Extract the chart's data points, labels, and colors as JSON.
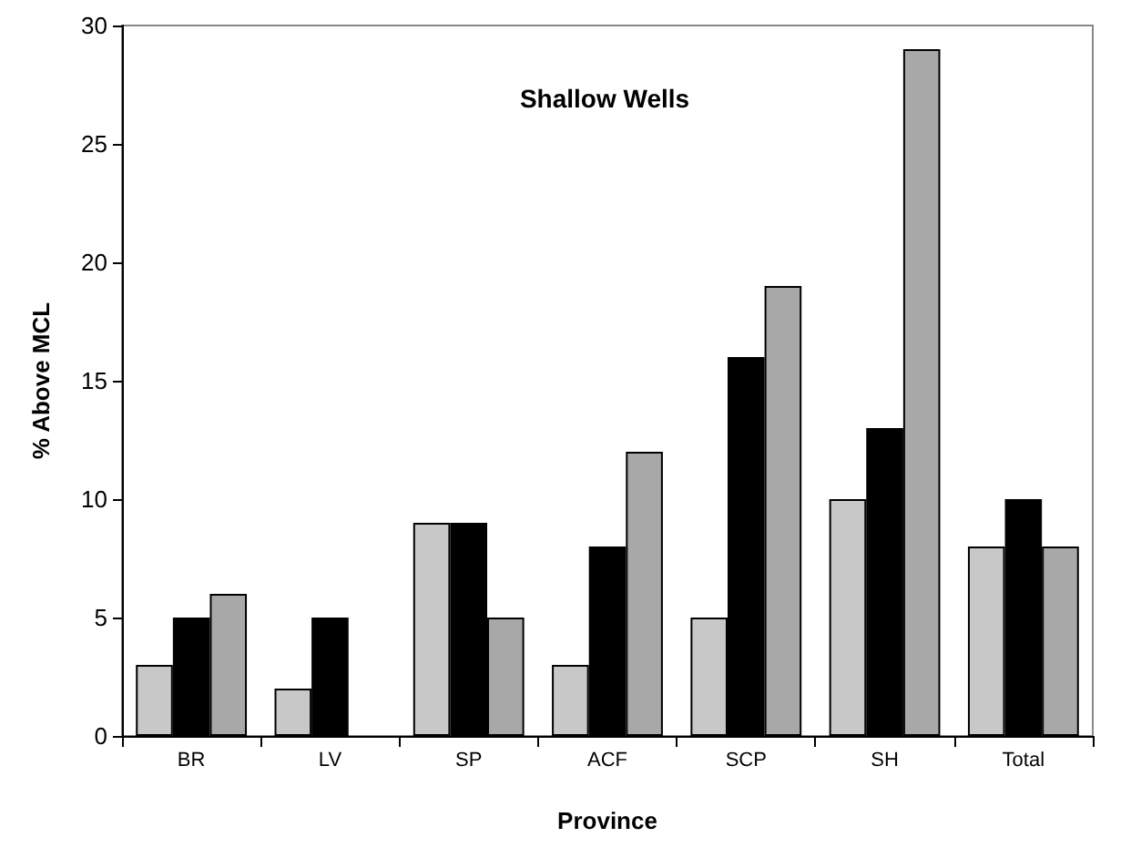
{
  "chart_data": {
    "type": "bar",
    "title": "Shallow Wells",
    "xlabel": "Province",
    "ylabel": "% Above MCL",
    "categories": [
      "BR",
      "LV",
      "SP",
      "ACF",
      "SCP",
      "SH",
      "Total"
    ],
    "series": [
      {
        "color": "#c8c8c8",
        "values": [
          3,
          2,
          9,
          3,
          5,
          10,
          8
        ]
      },
      {
        "color": "#000000",
        "values": [
          5,
          5,
          9,
          8,
          16,
          13,
          10
        ]
      },
      {
        "color": "#a8a8a8",
        "values": [
          6,
          null,
          5,
          12,
          19,
          29,
          8
        ]
      }
    ],
    "ylim": [
      0,
      30
    ],
    "yticks": [
      0,
      5,
      10,
      15,
      20,
      25,
      30
    ],
    "grid": false
  }
}
